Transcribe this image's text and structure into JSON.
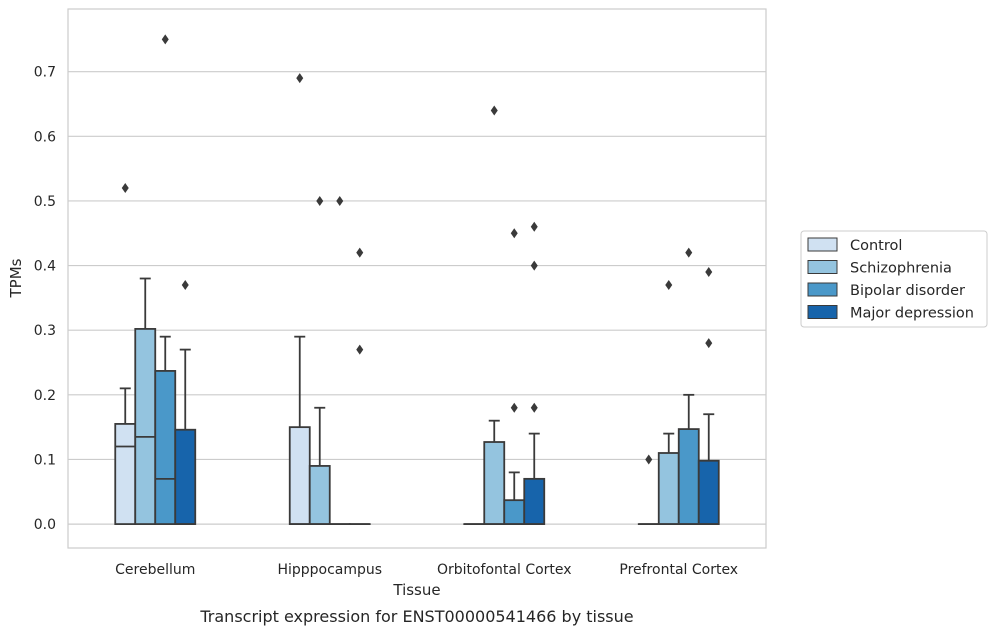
{
  "chart_data": {
    "type": "box",
    "xlabel": "Tissue",
    "ylabel": "TPMs",
    "caption": "Transcript expression for ENST00000541466 by tissue",
    "ylim": [
      -0.037,
      0.797
    ],
    "yticks": [
      "0.0",
      "0.1",
      "0.2",
      "0.3",
      "0.4",
      "0.5",
      "0.6",
      "0.7"
    ],
    "ytick_values": [
      0.0,
      0.1,
      0.2,
      0.3,
      0.4,
      0.5,
      0.6,
      0.7
    ],
    "grid": true,
    "legend_position": "right",
    "categories": [
      "Cerebellum",
      "Hipppocampus",
      "Orbitofontal Cortex",
      "Prefrontal Cortex"
    ],
    "series": [
      {
        "name": "Control",
        "color": "#d0e1f2",
        "boxes": [
          {
            "q1": 0.0,
            "median": 0.12,
            "q3": 0.155,
            "whisker_low": 0.0,
            "whisker_high": 0.21,
            "outliers": [
              0.52
            ]
          },
          {
            "q1": 0.0,
            "median": 0.0,
            "q3": 0.15,
            "whisker_low": 0.0,
            "whisker_high": 0.29,
            "outliers": [
              0.69
            ]
          },
          {
            "q1": 0.0,
            "median": 0.0,
            "q3": 0.0,
            "whisker_low": 0.0,
            "whisker_high": 0.0,
            "outliers": []
          },
          {
            "q1": 0.0,
            "median": 0.0,
            "q3": 0.0,
            "whisker_low": 0.0,
            "whisker_high": 0.0,
            "outliers": [
              0.1
            ]
          }
        ]
      },
      {
        "name": "Schizophrenia",
        "color": "#94c4df",
        "boxes": [
          {
            "q1": 0.0,
            "median": 0.135,
            "q3": 0.302,
            "whisker_low": 0.0,
            "whisker_high": 0.38,
            "outliers": []
          },
          {
            "q1": 0.0,
            "median": 0.0,
            "q3": 0.09,
            "whisker_low": 0.0,
            "whisker_high": 0.18,
            "outliers": [
              0.5
            ]
          },
          {
            "q1": 0.0,
            "median": 0.0,
            "q3": 0.127,
            "whisker_low": 0.0,
            "whisker_high": 0.16,
            "outliers": [
              0.64
            ]
          },
          {
            "q1": 0.0,
            "median": 0.0,
            "q3": 0.11,
            "whisker_low": 0.0,
            "whisker_high": 0.14,
            "outliers": [
              0.37
            ]
          }
        ]
      },
      {
        "name": "Bipolar disorder",
        "color": "#4a98c9",
        "boxes": [
          {
            "q1": 0.0,
            "median": 0.07,
            "q3": 0.237,
            "whisker_low": 0.0,
            "whisker_high": 0.29,
            "outliers": [
              0.75
            ]
          },
          {
            "q1": 0.0,
            "median": 0.0,
            "q3": 0.0,
            "whisker_low": 0.0,
            "whisker_high": 0.0,
            "outliers": [
              0.5
            ]
          },
          {
            "q1": 0.0,
            "median": 0.0,
            "q3": 0.037,
            "whisker_low": 0.0,
            "whisker_high": 0.08,
            "outliers": [
              0.45,
              0.18
            ]
          },
          {
            "q1": 0.0,
            "median": 0.0,
            "q3": 0.147,
            "whisker_low": 0.0,
            "whisker_high": 0.2,
            "outliers": [
              0.42
            ]
          }
        ]
      },
      {
        "name": "Major depression",
        "color": "#1764ab",
        "boxes": [
          {
            "q1": 0.0,
            "median": 0.0,
            "q3": 0.146,
            "whisker_low": 0.0,
            "whisker_high": 0.27,
            "outliers": [
              0.37
            ]
          },
          {
            "q1": 0.0,
            "median": 0.0,
            "q3": 0.0,
            "whisker_low": 0.0,
            "whisker_high": 0.0,
            "outliers": [
              0.42,
              0.27
            ]
          },
          {
            "q1": 0.0,
            "median": 0.0,
            "q3": 0.07,
            "whisker_low": 0.0,
            "whisker_high": 0.14,
            "outliers": [
              0.46,
              0.4,
              0.18
            ]
          },
          {
            "q1": 0.0,
            "median": 0.0,
            "q3": 0.098,
            "whisker_low": 0.0,
            "whisker_high": 0.17,
            "outliers": [
              0.39,
              0.28
            ]
          }
        ]
      }
    ]
  }
}
